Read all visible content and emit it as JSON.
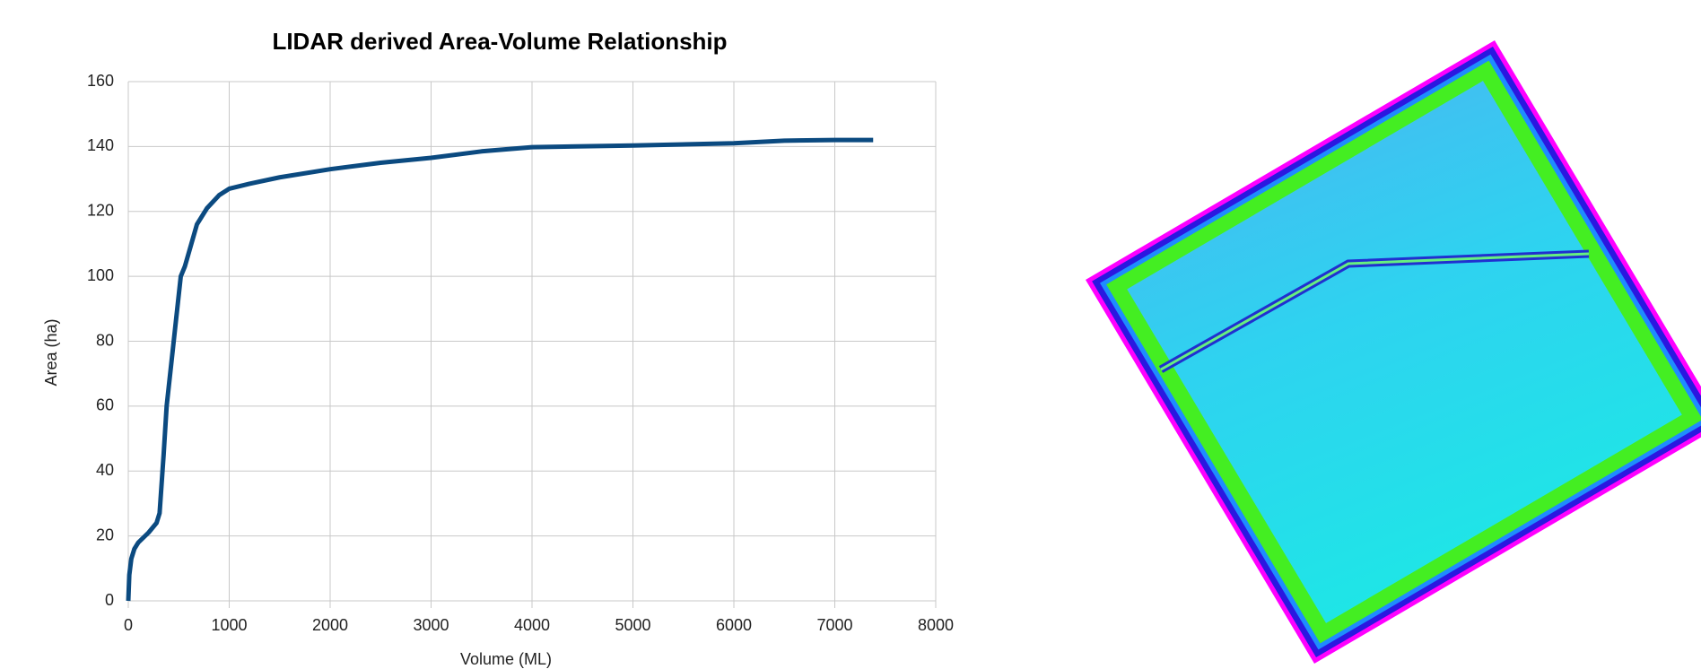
{
  "chart_data": {
    "type": "line",
    "title": "LIDAR derived Area-Volume Relationship",
    "xlabel": "Volume (ML)",
    "ylabel": "Area (ha)",
    "x": [
      0,
      10,
      30,
      60,
      100,
      200,
      280,
      310,
      350,
      380,
      450,
      520,
      560,
      680,
      780,
      900,
      1000,
      1200,
      1500,
      2000,
      2500,
      3000,
      3500,
      4000,
      5000,
      6000,
      6500,
      7000,
      7380
    ],
    "values": [
      0,
      8,
      13,
      16,
      18,
      21,
      24,
      27,
      45,
      60,
      80,
      100,
      103,
      116,
      121,
      125,
      127,
      128.5,
      130.5,
      133,
      135,
      136.5,
      138.5,
      139.8,
      140.3,
      141,
      141.8,
      142,
      142
    ],
    "color": "#0b4a80",
    "xlim": [
      0,
      8000
    ],
    "xticks": [
      0,
      1000,
      2000,
      3000,
      4000,
      5000,
      6000,
      7000,
      8000
    ],
    "ylim": [
      0,
      160
    ],
    "yticks": [
      0,
      20,
      40,
      60,
      80,
      100,
      120,
      140,
      160
    ],
    "grid": true
  }
}
